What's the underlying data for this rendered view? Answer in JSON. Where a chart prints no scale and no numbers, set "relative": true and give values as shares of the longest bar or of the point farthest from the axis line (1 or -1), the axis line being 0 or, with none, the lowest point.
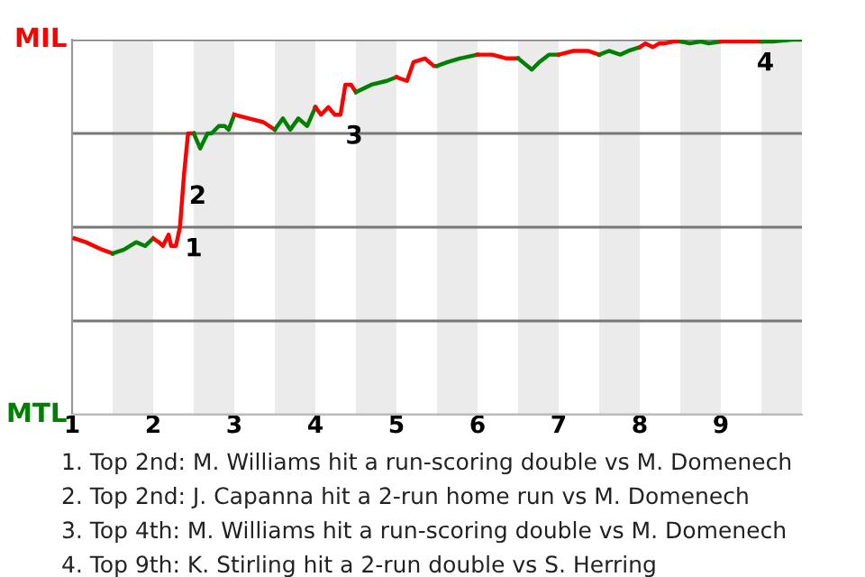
{
  "chart_data": {
    "type": "line",
    "relative": true,
    "xlim": [
      1,
      10
    ],
    "xticks": [
      1,
      2,
      3,
      4,
      5,
      6,
      7,
      8,
      9
    ],
    "legend": false,
    "marker": "none",
    "line_style": "solid",
    "series": [
      {
        "color": "#ff0000",
        "x": [
          1.03,
          1.17,
          1.37,
          1.5
        ],
        "values": [
          0.47,
          0.46,
          0.44,
          0.43
        ]
      },
      {
        "color": "#008000",
        "x": [
          1.5,
          1.64,
          1.79,
          1.9,
          2.0
        ],
        "values": [
          0.43,
          0.44,
          0.46,
          0.45,
          0.47
        ]
      },
      {
        "color": "#ff0000",
        "x": [
          2.0,
          2.07,
          2.12,
          2.19,
          2.22,
          2.28,
          2.33,
          2.38,
          2.43,
          2.5
        ],
        "values": [
          0.47,
          0.46,
          0.45,
          0.48,
          0.45,
          0.45,
          0.5,
          0.64,
          0.75,
          0.75
        ]
      },
      {
        "color": "#008000",
        "x": [
          2.5,
          2.58,
          2.67,
          2.72,
          2.81,
          2.88,
          2.93,
          3.0
        ],
        "values": [
          0.75,
          0.71,
          0.75,
          0.75,
          0.77,
          0.77,
          0.76,
          0.8
        ]
      },
      {
        "color": "#ff0000",
        "x": [
          3.0,
          3.18,
          3.36,
          3.5
        ],
        "values": [
          0.8,
          0.79,
          0.78,
          0.76
        ]
      },
      {
        "color": "#008000",
        "x": [
          3.5,
          3.6,
          3.69,
          3.79,
          3.9,
          4.0
        ],
        "values": [
          0.76,
          0.79,
          0.76,
          0.79,
          0.77,
          0.82
        ]
      },
      {
        "color": "#ff0000",
        "x": [
          4.0,
          4.07,
          4.16,
          4.24,
          4.31,
          4.37,
          4.44,
          4.5
        ],
        "values": [
          0.82,
          0.8,
          0.82,
          0.8,
          0.8,
          0.88,
          0.88,
          0.86
        ]
      },
      {
        "color": "#008000",
        "x": [
          4.5,
          4.69,
          4.88,
          5.0
        ],
        "values": [
          0.86,
          0.88,
          0.89,
          0.9
        ]
      },
      {
        "color": "#ff0000",
        "x": [
          5.0,
          5.13,
          5.21,
          5.35,
          5.46,
          5.5
        ],
        "values": [
          0.9,
          0.89,
          0.94,
          0.95,
          0.93,
          0.93
        ]
      },
      {
        "color": "#008000",
        "x": [
          5.5,
          5.63,
          5.78,
          6.0
        ],
        "values": [
          0.93,
          0.94,
          0.95,
          0.96
        ]
      },
      {
        "color": "#ff0000",
        "x": [
          6.0,
          6.18,
          6.36,
          6.5
        ],
        "values": [
          0.96,
          0.96,
          0.95,
          0.95
        ]
      },
      {
        "color": "#008000",
        "x": [
          6.5,
          6.67,
          6.76,
          6.88,
          7.0
        ],
        "values": [
          0.95,
          0.92,
          0.94,
          0.96,
          0.96
        ]
      },
      {
        "color": "#ff0000",
        "x": [
          7.0,
          7.18,
          7.36,
          7.5
        ],
        "values": [
          0.96,
          0.97,
          0.97,
          0.96
        ]
      },
      {
        "color": "#008000",
        "x": [
          7.5,
          7.62,
          7.76,
          7.86,
          8.0
        ],
        "values": [
          0.96,
          0.97,
          0.96,
          0.97,
          0.98
        ]
      },
      {
        "color": "#ff0000",
        "x": [
          8.0,
          8.07,
          8.16,
          8.24,
          8.31,
          8.41,
          8.5
        ],
        "values": [
          0.98,
          0.99,
          0.98,
          0.99,
          0.99,
          0.995,
          0.995
        ]
      },
      {
        "color": "#008000",
        "x": [
          8.5,
          8.62,
          8.75,
          8.85,
          9.0
        ],
        "values": [
          0.995,
          0.99,
          0.995,
          0.99,
          0.995
        ]
      },
      {
        "color": "#ff0000",
        "x": [
          9.0,
          9.09,
          9.5
        ],
        "values": [
          0.995,
          0.995,
          0.995
        ]
      },
      {
        "color": "#008000",
        "x": [
          9.5,
          9.64,
          9.88,
          10
        ],
        "values": [
          0.995,
          0.995,
          1,
          1
        ]
      }
    ],
    "ref_lines": [
      {
        "axis": "y",
        "value": 0,
        "color": "#bbbbbb"
      },
      {
        "axis": "y",
        "value": 0.25,
        "color": "#777777"
      },
      {
        "axis": "y",
        "value": 0.5,
        "color": "#777777"
      },
      {
        "axis": "y",
        "value": 0.75,
        "color": "#777777"
      },
      {
        "axis": "y",
        "value": 1,
        "color": "#777777"
      }
    ],
    "bands": [
      {
        "axis": "x",
        "from": 1.5,
        "to": 2,
        "color": "#ebebeb"
      },
      {
        "axis": "x",
        "from": 2.5,
        "to": 3,
        "color": "#ebebeb"
      },
      {
        "axis": "x",
        "from": 3.5,
        "to": 4,
        "color": "#ebebeb"
      },
      {
        "axis": "x",
        "from": 4.5,
        "to": 5,
        "color": "#ebebeb"
      },
      {
        "axis": "x",
        "from": 5.5,
        "to": 6,
        "color": "#ebebeb"
      },
      {
        "axis": "x",
        "from": 6.5,
        "to": 7,
        "color": "#ebebeb"
      },
      {
        "axis": "x",
        "from": 7.5,
        "to": 8,
        "color": "#ebebeb"
      },
      {
        "axis": "x",
        "from": 8.5,
        "to": 9,
        "color": "#ebebeb"
      },
      {
        "axis": "x",
        "from": 9.5,
        "to": 10,
        "color": "#ebebeb"
      }
    ],
    "annotations": [
      {
        "text": "MIL",
        "x": 1,
        "y": 1
      },
      {
        "text": "MTL",
        "x": 1,
        "y": 0
      },
      {
        "text": "1",
        "x": 2.33,
        "y": 0.5
      },
      {
        "text": "2",
        "x": 2.38,
        "y": 0.64
      },
      {
        "text": "3",
        "x": 4.31,
        "y": 0.8
      },
      {
        "text": "4",
        "x": 9.38,
        "y": 0.995
      },
      "1. Top 2nd: M. Williams hit a run-scoring double vs M. Domenech",
      "2. Top 2nd: J. Capanna hit a 2-run home run vs M. Domenech",
      "3. Top 4th: M. Williams hit a run-scoring double vs M. Domenech",
      "4. Top 9th: K. Stirling hit a 2-run double vs S. Herring"
    ]
  }
}
